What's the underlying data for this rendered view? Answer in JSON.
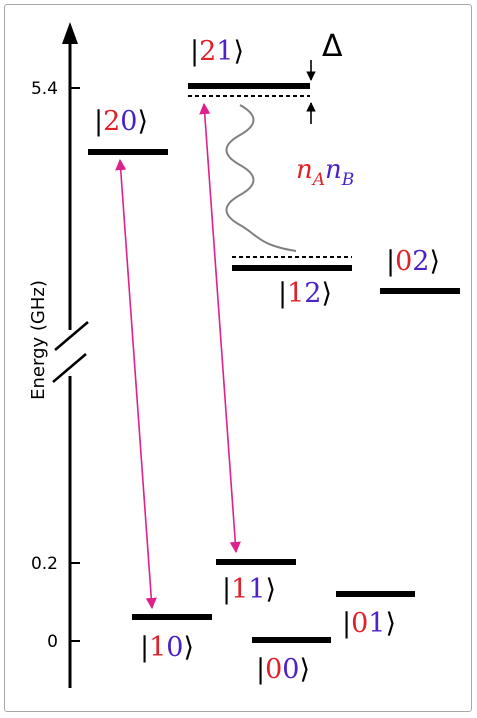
{
  "axis": {
    "label": "Energy (GHz)",
    "ticks": [
      {
        "label": "5.4"
      },
      {
        "label": "0.2"
      },
      {
        "label": "0"
      }
    ]
  },
  "states": {
    "s21": {
      "a": "2",
      "b": "1"
    },
    "s20": {
      "a": "2",
      "b": "0"
    },
    "s12": {
      "a": "1",
      "b": "2"
    },
    "s02": {
      "a": "0",
      "b": "2"
    },
    "s11": {
      "a": "1",
      "b": "1"
    },
    "s10": {
      "a": "1",
      "b": "0"
    },
    "s01": {
      "a": "0",
      "b": "1"
    },
    "s00": {
      "a": "0",
      "b": "0"
    }
  },
  "detuning": {
    "symbol": "Δ"
  },
  "coupling": {
    "n": "n",
    "A": "A",
    "B": "B"
  },
  "colors": {
    "subsystem_a": "#e0202a",
    "subsystem_b": "#4a22c8",
    "transition": "#e0208c",
    "wavy": "#808080"
  }
}
